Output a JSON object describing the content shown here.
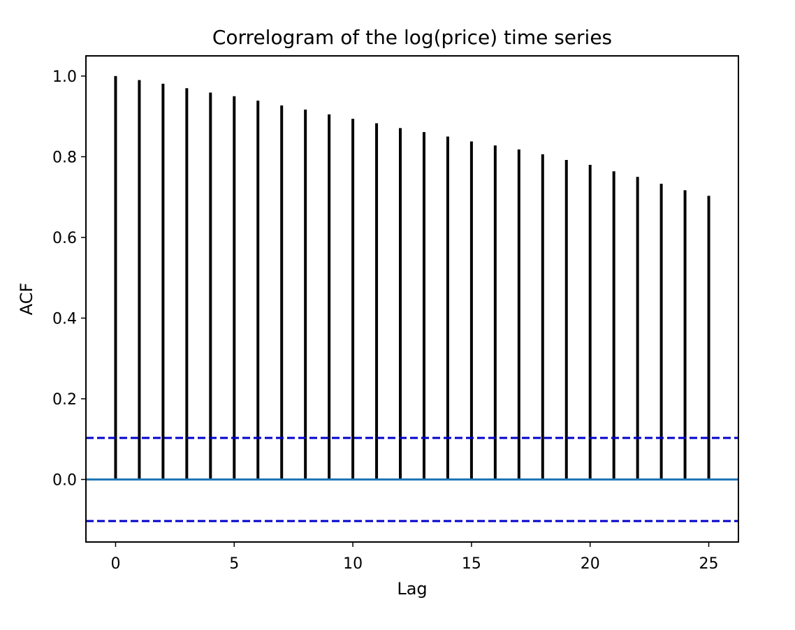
{
  "chart_data": {
    "type": "bar",
    "title": "Correlogram of the log(price) time series",
    "xlabel": "Lag",
    "ylabel": "ACF",
    "x": [
      0,
      1,
      2,
      3,
      4,
      5,
      6,
      7,
      8,
      9,
      10,
      11,
      12,
      13,
      14,
      15,
      16,
      17,
      18,
      19,
      20,
      21,
      22,
      23,
      24,
      25
    ],
    "values": [
      1.0,
      0.99,
      0.981,
      0.97,
      0.959,
      0.95,
      0.939,
      0.927,
      0.917,
      0.905,
      0.894,
      0.883,
      0.871,
      0.861,
      0.85,
      0.838,
      0.828,
      0.818,
      0.806,
      0.792,
      0.78,
      0.764,
      0.75,
      0.733,
      0.717,
      0.703
    ],
    "xlim": [
      -1.25,
      26.25
    ],
    "ylim": [
      -0.155,
      1.05
    ],
    "xticks": [
      0,
      5,
      10,
      15,
      20,
      25
    ],
    "yticks": [
      0.0,
      0.2,
      0.4,
      0.6,
      0.8,
      1.0
    ],
    "xtick_labels": [
      "0",
      "5",
      "10",
      "15",
      "20",
      "25"
    ],
    "ytick_labels": [
      "0.0",
      "0.2",
      "0.4",
      "0.6",
      "0.8",
      "1.0"
    ],
    "confidence_bounds": [
      0.103,
      -0.103
    ],
    "grid": false,
    "colors": {
      "bars": "#000000",
      "zero_line": "#1f77b4",
      "confidence": "#0000cc"
    }
  }
}
